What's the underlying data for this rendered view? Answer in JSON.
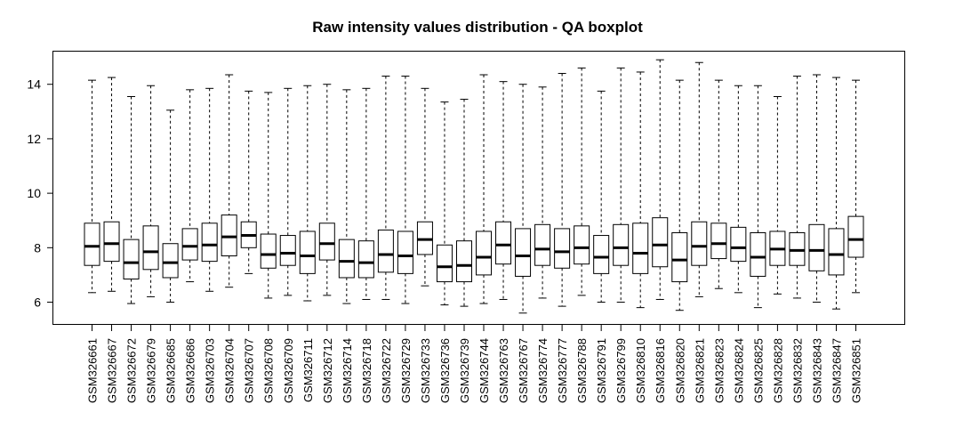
{
  "chart_data": {
    "type": "boxplot",
    "title": "Raw intensity values distribution - QA boxplot",
    "xlabel": "",
    "ylabel": "",
    "ylim": [
      5.2,
      15.2
    ],
    "yticks": [
      6,
      8,
      10,
      12,
      14
    ],
    "grid": false,
    "categories": [
      "GSM326661",
      "GSM326667",
      "GSM326672",
      "GSM326679",
      "GSM326685",
      "GSM326686",
      "GSM326703",
      "GSM326704",
      "GSM326707",
      "GSM326708",
      "GSM326709",
      "GSM326711",
      "GSM326712",
      "GSM326714",
      "GSM326718",
      "GSM326722",
      "GSM326729",
      "GSM326733",
      "GSM326736",
      "GSM326739",
      "GSM326744",
      "GSM326763",
      "GSM326767",
      "GSM326774",
      "GSM326777",
      "GSM326788",
      "GSM326791",
      "GSM326799",
      "GSM326810",
      "GSM326816",
      "GSM326820",
      "GSM326821",
      "GSM326823",
      "GSM326824",
      "GSM326825",
      "GSM326828",
      "GSM326832",
      "GSM326843",
      "GSM326847",
      "GSM326851"
    ],
    "boxes": [
      {
        "min": 6.35,
        "q1": 7.35,
        "median": 8.05,
        "q3": 8.9,
        "max": 14.15
      },
      {
        "min": 6.4,
        "q1": 7.5,
        "median": 8.15,
        "q3": 8.95,
        "max": 14.25
      },
      {
        "min": 5.95,
        "q1": 6.85,
        "median": 7.45,
        "q3": 8.3,
        "max": 13.55
      },
      {
        "min": 6.2,
        "q1": 7.2,
        "median": 7.85,
        "q3": 8.8,
        "max": 13.95
      },
      {
        "min": 6.0,
        "q1": 6.9,
        "median": 7.45,
        "q3": 8.15,
        "max": 13.05
      },
      {
        "min": 6.75,
        "q1": 7.55,
        "median": 8.05,
        "q3": 8.7,
        "max": 13.8
      },
      {
        "min": 6.4,
        "q1": 7.5,
        "median": 8.1,
        "q3": 8.9,
        "max": 13.85
      },
      {
        "min": 6.55,
        "q1": 7.7,
        "median": 8.4,
        "q3": 9.2,
        "max": 14.35
      },
      {
        "min": 7.05,
        "q1": 8.0,
        "median": 8.45,
        "q3": 8.95,
        "max": 13.75
      },
      {
        "min": 6.15,
        "q1": 7.25,
        "median": 7.75,
        "q3": 8.5,
        "max": 13.7
      },
      {
        "min": 6.25,
        "q1": 7.35,
        "median": 7.8,
        "q3": 8.45,
        "max": 13.85
      },
      {
        "min": 6.05,
        "q1": 7.05,
        "median": 7.7,
        "q3": 8.6,
        "max": 13.95
      },
      {
        "min": 6.25,
        "q1": 7.55,
        "median": 8.15,
        "q3": 8.9,
        "max": 14.0
      },
      {
        "min": 5.95,
        "q1": 6.9,
        "median": 7.5,
        "q3": 8.3,
        "max": 13.8
      },
      {
        "min": 6.1,
        "q1": 6.9,
        "median": 7.45,
        "q3": 8.25,
        "max": 13.85
      },
      {
        "min": 6.1,
        "q1": 7.1,
        "median": 7.75,
        "q3": 8.65,
        "max": 14.3
      },
      {
        "min": 5.95,
        "q1": 7.05,
        "median": 7.7,
        "q3": 8.6,
        "max": 14.3
      },
      {
        "min": 6.6,
        "q1": 7.75,
        "median": 8.3,
        "q3": 8.95,
        "max": 13.85
      },
      {
        "min": 5.9,
        "q1": 6.75,
        "median": 7.3,
        "q3": 8.1,
        "max": 13.35
      },
      {
        "min": 5.85,
        "q1": 6.75,
        "median": 7.35,
        "q3": 8.25,
        "max": 13.45
      },
      {
        "min": 5.95,
        "q1": 7.0,
        "median": 7.65,
        "q3": 8.6,
        "max": 14.35
      },
      {
        "min": 6.1,
        "q1": 7.4,
        "median": 8.1,
        "q3": 8.95,
        "max": 14.1
      },
      {
        "min": 5.6,
        "q1": 6.95,
        "median": 7.7,
        "q3": 8.7,
        "max": 14.0
      },
      {
        "min": 6.15,
        "q1": 7.35,
        "median": 7.95,
        "q3": 8.85,
        "max": 13.9
      },
      {
        "min": 5.85,
        "q1": 7.25,
        "median": 7.85,
        "q3": 8.7,
        "max": 14.4
      },
      {
        "min": 6.25,
        "q1": 7.4,
        "median": 8.0,
        "q3": 8.8,
        "max": 14.6
      },
      {
        "min": 6.0,
        "q1": 7.05,
        "median": 7.65,
        "q3": 8.45,
        "max": 13.75
      },
      {
        "min": 6.0,
        "q1": 7.35,
        "median": 8.0,
        "q3": 8.85,
        "max": 14.6
      },
      {
        "min": 5.8,
        "q1": 7.05,
        "median": 7.8,
        "q3": 8.9,
        "max": 14.45
      },
      {
        "min": 6.1,
        "q1": 7.3,
        "median": 8.1,
        "q3": 9.1,
        "max": 14.9
      },
      {
        "min": 5.7,
        "q1": 6.75,
        "median": 7.55,
        "q3": 8.55,
        "max": 14.15
      },
      {
        "min": 6.2,
        "q1": 7.35,
        "median": 8.05,
        "q3": 8.95,
        "max": 14.8
      },
      {
        "min": 6.5,
        "q1": 7.6,
        "median": 8.15,
        "q3": 8.9,
        "max": 14.15
      },
      {
        "min": 6.35,
        "q1": 7.5,
        "median": 8.0,
        "q3": 8.75,
        "max": 13.95
      },
      {
        "min": 5.8,
        "q1": 6.95,
        "median": 7.65,
        "q3": 8.55,
        "max": 13.95
      },
      {
        "min": 6.3,
        "q1": 7.35,
        "median": 7.95,
        "q3": 8.6,
        "max": 13.55
      },
      {
        "min": 6.15,
        "q1": 7.35,
        "median": 7.9,
        "q3": 8.55,
        "max": 14.3
      },
      {
        "min": 6.0,
        "q1": 7.15,
        "median": 7.9,
        "q3": 8.85,
        "max": 14.35
      },
      {
        "min": 5.75,
        "q1": 7.0,
        "median": 7.75,
        "q3": 8.7,
        "max": 14.25
      },
      {
        "min": 6.35,
        "q1": 7.65,
        "median": 8.3,
        "q3": 9.15,
        "max": 14.15
      }
    ],
    "colors": {
      "box_fill": "#ffffff",
      "stroke": "#000000",
      "whisker": "#000000"
    }
  }
}
